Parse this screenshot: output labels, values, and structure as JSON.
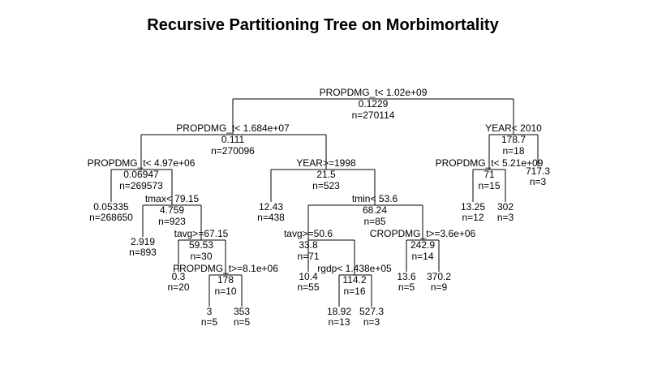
{
  "title": "Recursive Partitioning Tree on Morbimortality",
  "tree": {
    "split": "PROPDMG_t< 1.02e+09",
    "value": "0.1229",
    "n": "n=270114",
    "children": [
      {
        "split": "PROPDMG_t< 1.684e+07",
        "value": "0.111",
        "n": "n=270096",
        "children": [
          {
            "split": "PROPDMG_t< 4.97e+06",
            "value": "0.06947",
            "n": "n=269573",
            "children": [
              {
                "value": "0.05335",
                "n": "n=268650"
              },
              {
                "split": "tmax< 79.15",
                "value": "4.759",
                "n": "n=923",
                "children": [
                  {
                    "value": "2.919",
                    "n": "n=893"
                  },
                  {
                    "split": "tavg>=67.15",
                    "value": "59.53",
                    "n": "n=30",
                    "children": [
                      {
                        "value": "0.3",
                        "n": "n=20"
                      },
                      {
                        "split": "PROPDMG_t>=8.1e+06",
                        "value": "178",
                        "n": "n=10",
                        "children": [
                          {
                            "value": "3",
                            "n": "n=5"
                          },
                          {
                            "value": "353",
                            "n": "n=5"
                          }
                        ]
                      }
                    ]
                  }
                ]
              }
            ]
          },
          {
            "split": "YEAR>=1998",
            "value": "21.5",
            "n": "n=523",
            "children": [
              {
                "value": "12.43",
                "n": "n=438"
              },
              {
                "split": "tmin< 53.6",
                "value": "68.24",
                "n": "n=85",
                "children": [
                  {
                    "split": "tavg>=50.6",
                    "value": "33.8",
                    "n": "n=71",
                    "children": [
                      {
                        "value": "10.4",
                        "n": "n=55"
                      },
                      {
                        "split": "rgdp< 1.438e+05",
                        "value": "114.2",
                        "n": "n=16",
                        "children": [
                          {
                            "value": "18.92",
                            "n": "n=13"
                          },
                          {
                            "value": "527.3",
                            "n": "n=3"
                          }
                        ]
                      }
                    ]
                  },
                  {
                    "split": "CROPDMG_t>=3.6e+06",
                    "value": "242.9",
                    "n": "n=14",
                    "children": [
                      {
                        "value": "13.6",
                        "n": "n=5"
                      },
                      {
                        "value": "370.2",
                        "n": "n=9"
                      }
                    ]
                  }
                ]
              }
            ]
          }
        ]
      },
      {
        "split": "YEAR< 2010",
        "value": "178.7",
        "n": "n=18",
        "children": [
          {
            "split": "PROPDMG_t< 5.21e+09",
            "value": "71",
            "n": "n=15",
            "children": [
              {
                "value": "13.25",
                "n": "n=12"
              },
              {
                "value": "302",
                "n": "n=3"
              }
            ]
          },
          {
            "value": "717.3",
            "n": "n=3"
          }
        ]
      }
    ]
  }
}
